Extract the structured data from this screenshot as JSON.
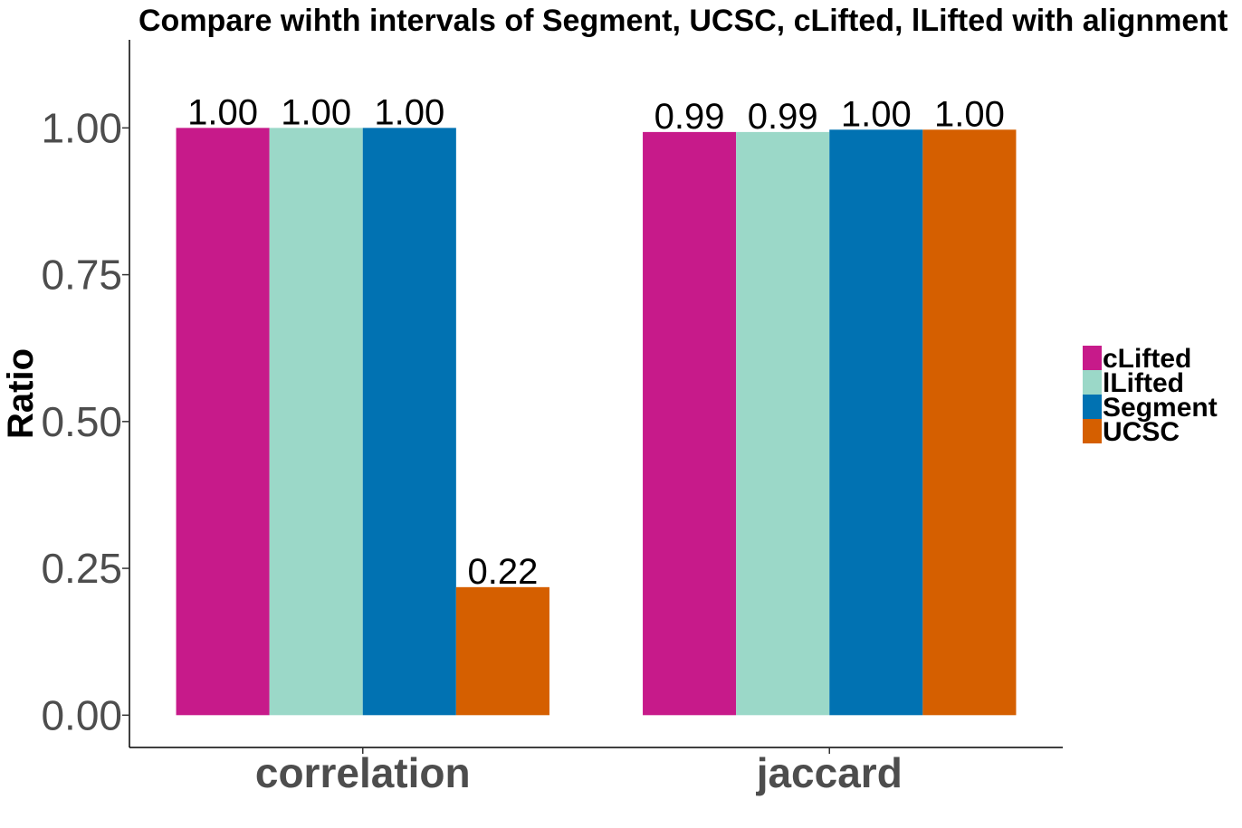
{
  "chart_data": {
    "type": "bar",
    "title": "Compare wihth intervals of Segment, UCSC, cLifted, lLifted with alignment",
    "xlabel": "",
    "ylabel": "Ratio",
    "categories": [
      "correlation",
      "jaccard"
    ],
    "ylim": [
      -0.055,
      1.15
    ],
    "yticks": [
      "0.00",
      "0.25",
      "0.50",
      "0.75",
      "1.00"
    ],
    "series": [
      {
        "name": "cLifted",
        "color": "#c71a8a",
        "values": [
          1.0,
          0.993
        ],
        "labels": [
          "1.00",
          "0.99"
        ]
      },
      {
        "name": "lLifted",
        "color": "#9bd8c8",
        "values": [
          1.0,
          0.993
        ],
        "labels": [
          "1.00",
          "0.99"
        ]
      },
      {
        "name": "Segment",
        "color": "#0172b2",
        "values": [
          1.0,
          0.997
        ],
        "labels": [
          "1.00",
          "1.00"
        ]
      },
      {
        "name": "UCSC",
        "color": "#d55f00",
        "values": [
          0.218,
          0.997
        ],
        "labels": [
          "0.22",
          "1.00"
        ]
      }
    ],
    "grid": false,
    "legend_position": "right"
  }
}
